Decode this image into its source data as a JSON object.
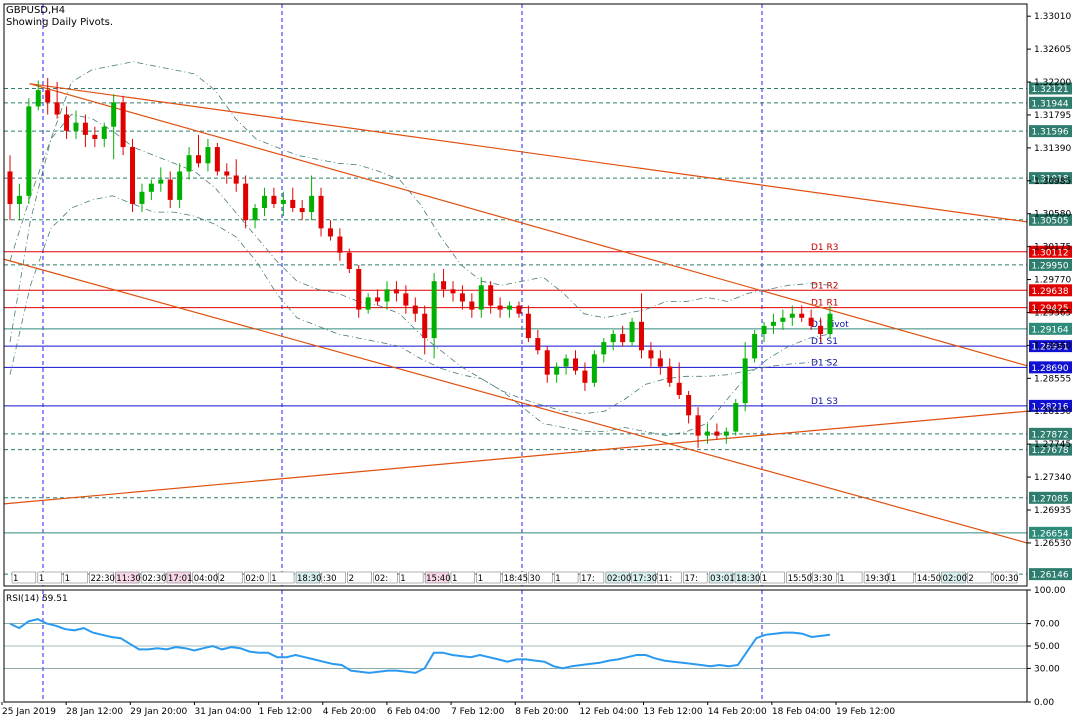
{
  "header": {
    "symbol": "GBPUSD,H4",
    "subtitle": "Showing Daily Pivots."
  },
  "chart_data": {
    "type": "candlestick",
    "symbol": "GBPUSD",
    "timeframe": "H4",
    "y_ticks": [
      "1.33010",
      "1.32605",
      "1.32200",
      "1.31795",
      "1.31390",
      "1.30985",
      "1.30580",
      "1.30175",
      "1.29770",
      "1.29365",
      "1.28960",
      "1.28555",
      "1.28150",
      "1.27745",
      "1.27340",
      "1.26935",
      "1.26530"
    ],
    "ylim": [
      1.26,
      1.3316
    ],
    "x_ticks": [
      "25 Jan 2019",
      "28 Jan 12:00",
      "29 Jan 20:00",
      "31 Jan 04:00",
      "1 Feb 12:00",
      "4 Feb 20:00",
      "6 Feb 04:00",
      "7 Feb 12:00",
      "8 Feb 20:00",
      "12 Feb 04:00",
      "13 Feb 12:00",
      "14 Feb 20:00",
      "18 Feb 04:00",
      "19 Feb 12:00"
    ],
    "level_labels": [
      {
        "value": 1.32121,
        "text": "1.32121",
        "style": "dash",
        "color": "#2e7d6e"
      },
      {
        "value": 1.31944,
        "text": "1.31944",
        "style": "dash",
        "color": "#2e7d6e"
      },
      {
        "value": 1.31596,
        "text": "1.31596",
        "style": "dash",
        "color": "#2e7d6e"
      },
      {
        "value": 1.31018,
        "text": "1.31018",
        "style": "dash",
        "color": "#2e7d6e"
      },
      {
        "value": 1.30505,
        "text": "1.30505",
        "style": "dash",
        "color": "#2e7d6e"
      },
      {
        "value": 1.30112,
        "text": "1.30112",
        "style": "solid",
        "color": "#e00000"
      },
      {
        "value": 1.2995,
        "text": "1.29950",
        "style": "dash",
        "color": "#2e7d6e"
      },
      {
        "value": 1.29638,
        "text": "1.29638",
        "style": "solid",
        "color": "#e00000"
      },
      {
        "value": 1.29425,
        "text": "1.29425",
        "style": "solid",
        "color": "#e00000"
      },
      {
        "value": 1.29164,
        "text": "1.29164",
        "style": "solid",
        "color": "#2e8b7a"
      },
      {
        "value": 1.28951,
        "text": "1.28951",
        "style": "solid",
        "color": "#1010d0"
      },
      {
        "value": 1.2869,
        "text": "1.28690",
        "style": "solid",
        "color": "#1010d0"
      },
      {
        "value": 1.28216,
        "text": "1.28216",
        "style": "solid",
        "color": "#1010d0"
      },
      {
        "value": 1.27872,
        "text": "1.27872",
        "style": "dash",
        "color": "#2e7d6e"
      },
      {
        "value": 1.27678,
        "text": "1.27678",
        "style": "dash",
        "color": "#2e7d6e"
      },
      {
        "value": 1.27085,
        "text": "1.27085",
        "style": "dash",
        "color": "#2e7d6e"
      },
      {
        "value": 1.26654,
        "text": "1.26654",
        "style": "solid",
        "color": "#2e8b7a"
      },
      {
        "value": 1.26146,
        "text": "1.26146",
        "style": "dash",
        "color": "#2e7d6e"
      }
    ],
    "pivot_labels": [
      {
        "text": "D1 R3",
        "value": 1.30112
      },
      {
        "text": "D1 R2",
        "value": 1.29638
      },
      {
        "text": "D1 R1",
        "value": 1.29425
      },
      {
        "text": "D1 Pivot",
        "value": 1.29164
      },
      {
        "text": "D1 S1",
        "value": 1.28951
      },
      {
        "text": "D1 S2",
        "value": 1.2869
      },
      {
        "text": "D1 S3",
        "value": 1.28216
      }
    ],
    "trendlines": [
      {
        "from": [
          0.025,
          1.3218
        ],
        "to": [
          1.0,
          1.3048
        ]
      },
      {
        "from": [
          0.025,
          1.3218
        ],
        "to": [
          1.0,
          1.2871
        ]
      },
      {
        "from": [
          0.0,
          1.3002
        ],
        "to": [
          1.0,
          1.2653
        ]
      },
      {
        "from": [
          0.0,
          1.2701
        ],
        "to": [
          1.0,
          1.2815
        ]
      }
    ],
    "candles": [
      {
        "o": 1.311,
        "h": 1.313,
        "l": 1.305,
        "c": 1.307
      },
      {
        "o": 1.307,
        "h": 1.3095,
        "l": 1.305,
        "c": 1.308
      },
      {
        "o": 1.308,
        "h": 1.32,
        "l": 1.307,
        "c": 1.319
      },
      {
        "o": 1.319,
        "h": 1.3222,
        "l": 1.3185,
        "c": 1.321
      },
      {
        "o": 1.321,
        "h": 1.3225,
        "l": 1.318,
        "c": 1.3195
      },
      {
        "o": 1.3195,
        "h": 1.322,
        "l": 1.3175,
        "c": 1.318
      },
      {
        "o": 1.318,
        "h": 1.319,
        "l": 1.315,
        "c": 1.316
      },
      {
        "o": 1.316,
        "h": 1.3185,
        "l": 1.315,
        "c": 1.317
      },
      {
        "o": 1.317,
        "h": 1.318,
        "l": 1.314,
        "c": 1.3155
      },
      {
        "o": 1.3155,
        "h": 1.3165,
        "l": 1.314,
        "c": 1.315
      },
      {
        "o": 1.315,
        "h": 1.317,
        "l": 1.314,
        "c": 1.3165
      },
      {
        "o": 1.3165,
        "h": 1.3205,
        "l": 1.3125,
        "c": 1.3195
      },
      {
        "o": 1.3195,
        "h": 1.3203,
        "l": 1.313,
        "c": 1.314
      },
      {
        "o": 1.314,
        "h": 1.315,
        "l": 1.306,
        "c": 1.307
      },
      {
        "o": 1.307,
        "h": 1.3095,
        "l": 1.306,
        "c": 1.3085
      },
      {
        "o": 1.3085,
        "h": 1.31,
        "l": 1.3075,
        "c": 1.3095
      },
      {
        "o": 1.3095,
        "h": 1.3115,
        "l": 1.3085,
        "c": 1.31
      },
      {
        "o": 1.31,
        "h": 1.311,
        "l": 1.3065,
        "c": 1.3075
      },
      {
        "o": 1.3075,
        "h": 1.312,
        "l": 1.3065,
        "c": 1.311
      },
      {
        "o": 1.311,
        "h": 1.314,
        "l": 1.31,
        "c": 1.313
      },
      {
        "o": 1.313,
        "h": 1.3155,
        "l": 1.3115,
        "c": 1.312
      },
      {
        "o": 1.312,
        "h": 1.315,
        "l": 1.311,
        "c": 1.314
      },
      {
        "o": 1.314,
        "h": 1.3145,
        "l": 1.3105,
        "c": 1.311
      },
      {
        "o": 1.311,
        "h": 1.312,
        "l": 1.3095,
        "c": 1.3105
      },
      {
        "o": 1.3105,
        "h": 1.3125,
        "l": 1.3085,
        "c": 1.3095
      },
      {
        "o": 1.3095,
        "h": 1.3105,
        "l": 1.304,
        "c": 1.305
      },
      {
        "o": 1.305,
        "h": 1.307,
        "l": 1.304,
        "c": 1.3065
      },
      {
        "o": 1.3065,
        "h": 1.309,
        "l": 1.3055,
        "c": 1.308
      },
      {
        "o": 1.308,
        "h": 1.309,
        "l": 1.3065,
        "c": 1.307
      },
      {
        "o": 1.307,
        "h": 1.3085,
        "l": 1.3055,
        "c": 1.3075
      },
      {
        "o": 1.3075,
        "h": 1.309,
        "l": 1.306,
        "c": 1.3065
      },
      {
        "o": 1.3065,
        "h": 1.3075,
        "l": 1.305,
        "c": 1.306
      },
      {
        "o": 1.306,
        "h": 1.3105,
        "l": 1.305,
        "c": 1.308
      },
      {
        "o": 1.308,
        "h": 1.309,
        "l": 1.303,
        "c": 1.304
      },
      {
        "o": 1.304,
        "h": 1.305,
        "l": 1.3025,
        "c": 1.303
      },
      {
        "o": 1.303,
        "h": 1.304,
        "l": 1.3,
        "c": 1.301
      },
      {
        "o": 1.301,
        "h": 1.3015,
        "l": 1.2985,
        "c": 1.299
      },
      {
        "o": 1.299,
        "h": 1.2995,
        "l": 1.293,
        "c": 1.294
      },
      {
        "o": 1.294,
        "h": 1.296,
        "l": 1.2935,
        "c": 1.2955
      },
      {
        "o": 1.2955,
        "h": 1.2965,
        "l": 1.2945,
        "c": 1.295
      },
      {
        "o": 1.295,
        "h": 1.2975,
        "l": 1.294,
        "c": 1.2965
      },
      {
        "o": 1.2965,
        "h": 1.2975,
        "l": 1.295,
        "c": 1.296
      },
      {
        "o": 1.296,
        "h": 1.297,
        "l": 1.2935,
        "c": 1.2945
      },
      {
        "o": 1.2945,
        "h": 1.2955,
        "l": 1.2925,
        "c": 1.2935
      },
      {
        "o": 1.2935,
        "h": 1.2945,
        "l": 1.2885,
        "c": 1.2905
      },
      {
        "o": 1.2905,
        "h": 1.2985,
        "l": 1.288,
        "c": 1.2975
      },
      {
        "o": 1.2975,
        "h": 1.299,
        "l": 1.2955,
        "c": 1.2965
      },
      {
        "o": 1.2965,
        "h": 1.2975,
        "l": 1.295,
        "c": 1.296
      },
      {
        "o": 1.296,
        "h": 1.297,
        "l": 1.294,
        "c": 1.295
      },
      {
        "o": 1.295,
        "h": 1.296,
        "l": 1.293,
        "c": 1.294
      },
      {
        "o": 1.294,
        "h": 1.298,
        "l": 1.293,
        "c": 1.297
      },
      {
        "o": 1.297,
        "h": 1.2975,
        "l": 1.2935,
        "c": 1.2945
      },
      {
        "o": 1.2945,
        "h": 1.2955,
        "l": 1.293,
        "c": 1.294
      },
      {
        "o": 1.294,
        "h": 1.295,
        "l": 1.293,
        "c": 1.2945
      },
      {
        "o": 1.2945,
        "h": 1.295,
        "l": 1.293,
        "c": 1.2935
      },
      {
        "o": 1.2935,
        "h": 1.2945,
        "l": 1.29,
        "c": 1.2905
      },
      {
        "o": 1.2905,
        "h": 1.2915,
        "l": 1.2885,
        "c": 1.289
      },
      {
        "o": 1.289,
        "h": 1.2895,
        "l": 1.285,
        "c": 1.286
      },
      {
        "o": 1.286,
        "h": 1.2875,
        "l": 1.285,
        "c": 1.287
      },
      {
        "o": 1.287,
        "h": 1.2885,
        "l": 1.286,
        "c": 1.288
      },
      {
        "o": 1.288,
        "h": 1.289,
        "l": 1.286,
        "c": 1.2865
      },
      {
        "o": 1.2865,
        "h": 1.2875,
        "l": 1.284,
        "c": 1.285
      },
      {
        "o": 1.285,
        "h": 1.289,
        "l": 1.2845,
        "c": 1.2885
      },
      {
        "o": 1.2885,
        "h": 1.2905,
        "l": 1.2875,
        "c": 1.29
      },
      {
        "o": 1.29,
        "h": 1.2915,
        "l": 1.289,
        "c": 1.291
      },
      {
        "o": 1.291,
        "h": 1.292,
        "l": 1.2895,
        "c": 1.29
      },
      {
        "o": 1.29,
        "h": 1.293,
        "l": 1.2895,
        "c": 1.2925
      },
      {
        "o": 1.2925,
        "h": 1.296,
        "l": 1.288,
        "c": 1.289
      },
      {
        "o": 1.289,
        "h": 1.29,
        "l": 1.287,
        "c": 1.288
      },
      {
        "o": 1.288,
        "h": 1.289,
        "l": 1.286,
        "c": 1.287
      },
      {
        "o": 1.287,
        "h": 1.288,
        "l": 1.2845,
        "c": 1.285
      },
      {
        "o": 1.285,
        "h": 1.2875,
        "l": 1.283,
        "c": 1.2835
      },
      {
        "o": 1.2835,
        "h": 1.284,
        "l": 1.28,
        "c": 1.281
      },
      {
        "o": 1.281,
        "h": 1.282,
        "l": 1.277,
        "c": 1.2785
      },
      {
        "o": 1.2785,
        "h": 1.28,
        "l": 1.2775,
        "c": 1.279
      },
      {
        "o": 1.279,
        "h": 1.28,
        "l": 1.278,
        "c": 1.2785
      },
      {
        "o": 1.2785,
        "h": 1.2795,
        "l": 1.2775,
        "c": 1.279
      },
      {
        "o": 1.279,
        "h": 1.283,
        "l": 1.2785,
        "c": 1.2825
      },
      {
        "o": 1.2825,
        "h": 1.29,
        "l": 1.2815,
        "c": 1.288
      },
      {
        "o": 1.288,
        "h": 1.2915,
        "l": 1.2875,
        "c": 1.291
      },
      {
        "o": 1.291,
        "h": 1.2925,
        "l": 1.29,
        "c": 1.292
      },
      {
        "o": 1.292,
        "h": 1.2935,
        "l": 1.291,
        "c": 1.2925
      },
      {
        "o": 1.2925,
        "h": 1.294,
        "l": 1.2915,
        "c": 1.293
      },
      {
        "o": 1.293,
        "h": 1.2945,
        "l": 1.292,
        "c": 1.2935
      },
      {
        "o": 1.2935,
        "h": 1.2945,
        "l": 1.2925,
        "c": 1.293
      },
      {
        "o": 1.293,
        "h": 1.294,
        "l": 1.2915,
        "c": 1.292
      },
      {
        "o": 1.292,
        "h": 1.293,
        "l": 1.29,
        "c": 1.291
      },
      {
        "o": 1.291,
        "h": 1.2945,
        "l": 1.2905,
        "c": 1.2935
      }
    ],
    "rsi": {
      "label": "RSI(14) 59.51",
      "value": 59.51,
      "ticks": [
        "100.00",
        "70.00",
        "50.00",
        "30.00",
        "0.00"
      ],
      "ylim": [
        0,
        100
      ],
      "levels": [
        70,
        50,
        30
      ],
      "values": [
        70,
        66,
        72,
        74,
        70,
        68,
        65,
        64,
        66,
        62,
        60,
        58,
        57,
        52,
        47,
        47,
        48,
        47,
        49,
        48,
        46,
        48,
        50,
        47,
        49,
        48,
        45,
        44,
        44,
        40,
        40,
        42,
        40,
        38,
        36,
        34,
        33,
        28,
        27,
        26,
        27,
        28,
        28,
        27,
        26,
        30,
        44,
        44,
        42,
        41,
        40,
        42,
        40,
        38,
        36,
        38,
        38,
        37,
        36,
        32,
        30,
        32,
        33,
        34,
        35,
        37,
        38,
        40,
        42,
        42,
        39,
        37,
        36,
        35,
        34,
        33,
        32,
        33,
        32,
        33,
        45,
        57,
        60,
        61,
        62,
        62,
        61,
        58,
        59,
        60
      ]
    },
    "band": {
      "upper": [
        1.29,
        1.305,
        1.315,
        1.322,
        1.3235,
        1.324,
        1.3245,
        1.324,
        1.3235,
        1.323,
        1.321,
        1.3175,
        1.315,
        1.314,
        1.313,
        1.3125,
        1.312,
        1.3118,
        1.311,
        1.31,
        1.307,
        1.303,
        1.2995,
        1.2975,
        1.297,
        1.2975,
        1.298,
        1.296,
        1.2935,
        1.293,
        1.2935,
        1.294,
        1.295,
        1.295,
        1.2955,
        1.295,
        1.296,
        1.2965,
        1.297,
        1.2972,
        1.297
      ],
      "lower": [
        1.286,
        1.297,
        1.304,
        1.3065,
        1.3075,
        1.308,
        1.307,
        1.306,
        1.306,
        1.3055,
        1.3045,
        1.303,
        1.3,
        1.296,
        1.293,
        1.292,
        1.291,
        1.2905,
        1.29,
        1.2895,
        1.288,
        1.2868,
        1.286,
        1.2855,
        1.284,
        1.283,
        1.2822,
        1.2815,
        1.2812,
        1.2815,
        1.283,
        1.2848,
        1.2855,
        1.2858,
        1.2858,
        1.286,
        1.2865,
        1.287,
        1.2873,
        1.2875,
        1.2878
      ],
      "mid": [
        1.3,
        1.308,
        1.315,
        1.318,
        1.3175,
        1.316,
        1.314,
        1.313,
        1.312,
        1.311,
        1.309,
        1.306,
        1.303,
        1.3,
        1.2975,
        1.2965,
        1.296,
        1.295,
        1.2945,
        1.2935,
        1.291,
        1.289,
        1.287,
        1.2855,
        1.284,
        1.282,
        1.28,
        1.2795,
        1.279,
        1.279,
        1.2795,
        1.279,
        1.2785,
        1.279,
        1.28,
        1.283,
        1.286,
        1.288,
        1.2895,
        1.2905,
        1.291
      ]
    },
    "session_labels": [
      "1",
      "1",
      "1",
      "22:30",
      "11:30",
      "02:30",
      "17:01",
      "04:00",
      "2",
      "02:0",
      "1",
      "18:30",
      ":30",
      "2",
      "02:",
      "1",
      "15:40",
      "1",
      "1",
      "18:45",
      "30",
      "1",
      "17:",
      "02:00",
      "17:30",
      "11:",
      "17:",
      "03:01",
      "18:30",
      "1",
      "15:50",
      "3:30",
      "1",
      "19:30",
      "1",
      "14:50",
      "02:00",
      "2",
      "00:30"
    ],
    "colors": {
      "up": "#00b000",
      "down": "#e00000",
      "trend": "#e05010",
      "grid": "#2020ff",
      "band": "#4a7a7a",
      "rsi": "#2a9af0"
    }
  }
}
